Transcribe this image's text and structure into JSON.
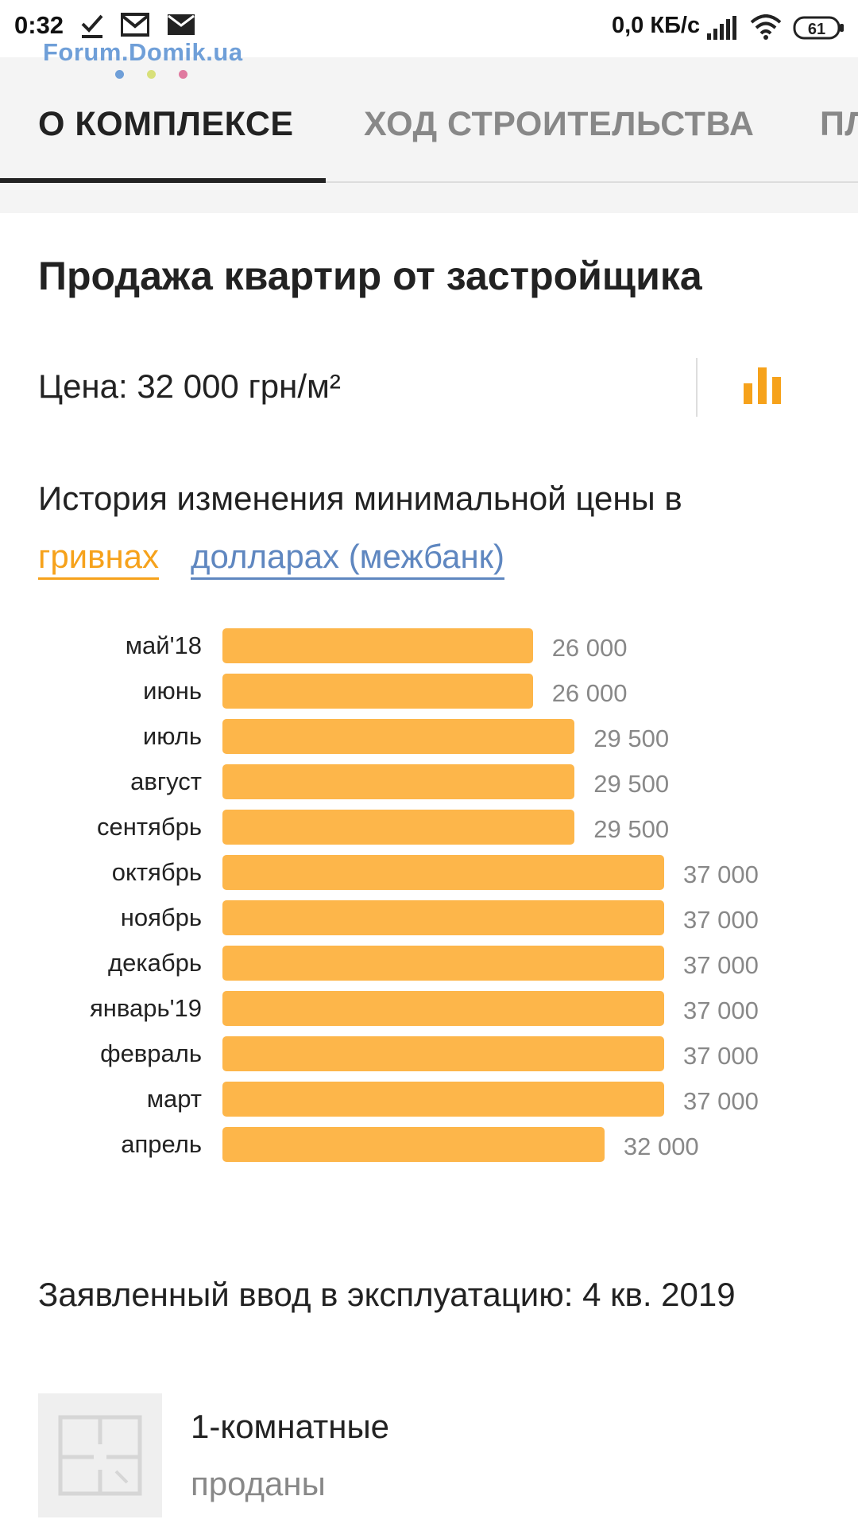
{
  "status_bar": {
    "time": "0:32",
    "net_speed": "0,0 КБ/с",
    "battery": "61",
    "icons": [
      "check-icon",
      "gmail-icon",
      "mail-icon",
      "signal-icon",
      "wifi-icon",
      "battery-icon"
    ]
  },
  "watermark": "Forum.Domik.ua",
  "tabs": [
    {
      "label": "О КОМПЛЕКСЕ",
      "active": true
    },
    {
      "label": "ХОД СТРОИТЕЛЬСТВА",
      "active": false
    },
    {
      "label": "ПЛ",
      "active": false
    }
  ],
  "sales": {
    "title": "Продажа квартир от застройщика",
    "price": "Цена: 32 000 грн/м²",
    "chart_icon": "bar-chart-icon",
    "history_text": "История изменения минимальной цены в",
    "currency_uah": "гривнах",
    "currency_usd": "долларах (межбанк)"
  },
  "chart_data": {
    "type": "bar",
    "orientation": "horizontal",
    "categories": [
      "май'18",
      "июнь",
      "июль",
      "август",
      "сентябрь",
      "октябрь",
      "ноябрь",
      "декабрь",
      "январь'19",
      "февраль",
      "март",
      "апрель"
    ],
    "values": [
      26000,
      26000,
      29500,
      29500,
      29500,
      37000,
      37000,
      37000,
      37000,
      37000,
      37000,
      32000
    ],
    "value_labels": [
      "26 000",
      "26 000",
      "29 500",
      "29 500",
      "29 500",
      "37 000",
      "37 000",
      "37 000",
      "37 000",
      "37 000",
      "37 000",
      "32 000"
    ],
    "bar_color": "#fdb64a",
    "grid": false
  },
  "commissioning": "Заявленный ввод в эксплуатацию: 4 кв. 2019",
  "apartment": {
    "type": "1-комнатные",
    "status": "проданы",
    "thumb_icon": "floorplan-icon"
  },
  "colors": {
    "accent_orange": "#f6a21b",
    "link_blue": "#5f87c0",
    "watermark_blue": "#6f9fd8"
  }
}
